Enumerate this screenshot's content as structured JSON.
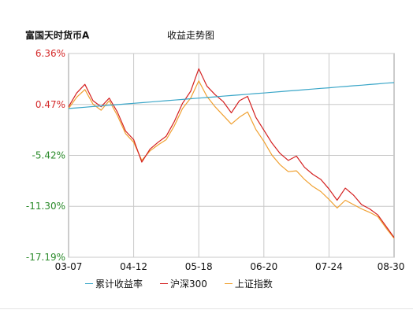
{
  "header": {
    "fund_name": "富国天时货币A",
    "chart_title": "收益走势图"
  },
  "chart_data": {
    "type": "line",
    "ylim": [
      -17.19,
      6.36
    ],
    "y_ticks": [
      {
        "value": 6.36,
        "label": "6.36%",
        "color": "#d42a2a"
      },
      {
        "value": 0.47,
        "label": "0.47%",
        "color": "#d42a2a"
      },
      {
        "value": -5.42,
        "label": "-5.42%",
        "color": "#2a8a2a"
      },
      {
        "value": -11.3,
        "label": "-11.30%",
        "color": "#2a8a2a"
      },
      {
        "value": -17.19,
        "label": "-17.19%",
        "color": "#2a8a2a"
      }
    ],
    "x_ticks": [
      "03-07",
      "04-12",
      "05-18",
      "06-20",
      "07-24",
      "08-30"
    ],
    "grid": true,
    "legend_position": "bottom",
    "series": [
      {
        "name": "累计收益率",
        "color": "#3aa6c8",
        "values": [
          0.0,
          0.08,
          0.15,
          0.23,
          0.3,
          0.38,
          0.45,
          0.53,
          0.6,
          0.68,
          0.75,
          0.83,
          0.9,
          0.98,
          1.05,
          1.13,
          1.2,
          1.28,
          1.35,
          1.43,
          1.5,
          1.58,
          1.65,
          1.73,
          1.8,
          1.88,
          1.95,
          2.03,
          2.1,
          2.18,
          2.25,
          2.33,
          2.4,
          2.48,
          2.55,
          2.63,
          2.7,
          2.78,
          2.85,
          2.93,
          3.0
        ]
      },
      {
        "name": "沪深300",
        "color": "#d42020",
        "values": [
          0.2,
          1.8,
          2.8,
          0.9,
          0.2,
          1.2,
          -0.4,
          -2.6,
          -3.6,
          -6.2,
          -4.7,
          -3.9,
          -3.2,
          -1.5,
          0.6,
          2.0,
          4.6,
          2.6,
          1.6,
          0.8,
          -0.5,
          0.9,
          1.4,
          -1.0,
          -2.5,
          -4.0,
          -5.2,
          -6.0,
          -5.5,
          -6.8,
          -7.6,
          -8.2,
          -9.3,
          -10.6,
          -9.2,
          -10.0,
          -11.1,
          -11.6,
          -12.3,
          -13.6,
          -14.9
        ]
      },
      {
        "name": "上证指数",
        "color": "#f0a030",
        "values": [
          0.0,
          1.3,
          2.2,
          0.5,
          -0.2,
          0.9,
          -0.8,
          -2.9,
          -3.9,
          -6.0,
          -4.9,
          -4.2,
          -3.6,
          -2.0,
          0.0,
          1.2,
          3.2,
          1.4,
          0.2,
          -0.8,
          -1.8,
          -1.0,
          -0.4,
          -2.4,
          -3.8,
          -5.4,
          -6.5,
          -7.3,
          -7.2,
          -8.2,
          -9.0,
          -9.6,
          -10.5,
          -11.5,
          -10.6,
          -11.1,
          -11.6,
          -12.0,
          -12.5,
          -13.8,
          -15.0
        ]
      }
    ]
  }
}
